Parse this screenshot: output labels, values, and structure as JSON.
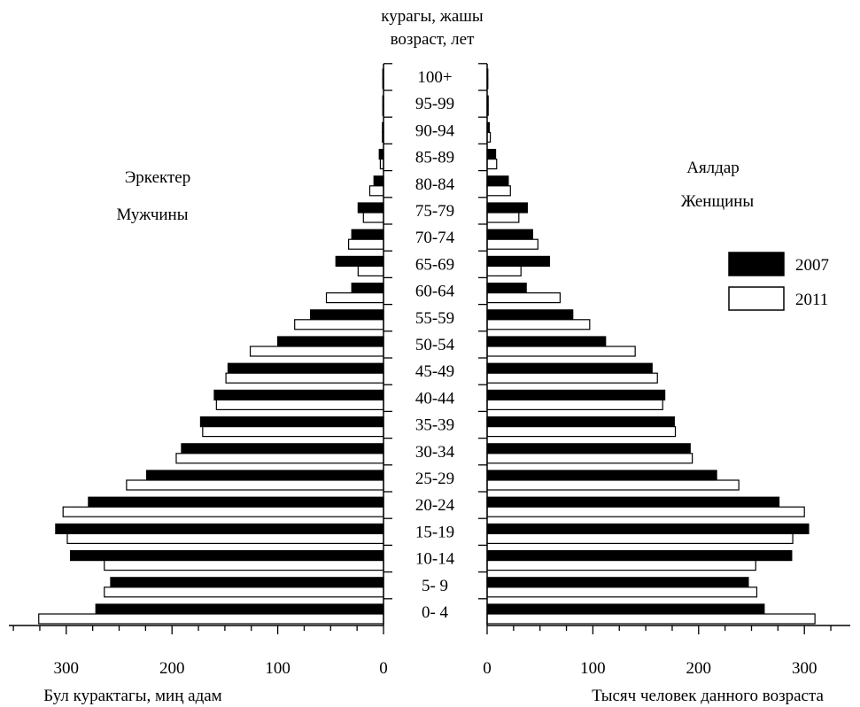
{
  "chart_data": {
    "type": "bar",
    "title_lines": [
      "курагы, жашы",
      "возраст, лет"
    ],
    "left_label_lines": [
      "Эркектер",
      "Мужчины"
    ],
    "right_label_lines": [
      "Аялдар",
      "Женщины"
    ],
    "xlabel_left": "Бул курактагы, миң адам",
    "xlabel_right": "Тысяч человек данного возраста",
    "xlim": [
      0,
      350
    ],
    "ticks": [
      "0",
      "100",
      "200",
      "300"
    ],
    "categories": [
      "0- 4",
      "5- 9",
      "10-14",
      "15-19",
      "20-24",
      "25-29",
      "30-34",
      "35-39",
      "40-44",
      "45-49",
      "50-54",
      "55-59",
      "60-64",
      "65-69",
      "70-74",
      "75-79",
      "80-84",
      "85-89",
      "90-94",
      "95-99",
      "100+"
    ],
    "legend_position": "right",
    "series": [
      {
        "name": "2007",
        "fill": "#000000",
        "male": [
          272,
          258,
          296,
          310,
          279,
          224,
          191,
          173,
          160,
          147,
          100,
          69,
          30,
          45,
          30,
          24,
          9,
          4,
          1,
          0.5,
          0.5
        ],
        "female": [
          262,
          247,
          288,
          304,
          276,
          217,
          192,
          177,
          168,
          156,
          112,
          81,
          37,
          59,
          43,
          38,
          20,
          8,
          2,
          1,
          0.5
        ]
      },
      {
        "name": "2011",
        "fill": "#ffffff",
        "male": [
          326,
          264,
          264,
          299,
          303,
          243,
          196,
          171,
          158,
          149,
          126,
          84,
          54,
          24,
          33,
          19,
          13,
          3,
          1,
          0.5,
          0.5
        ],
        "female": [
          310,
          255,
          254,
          289,
          300,
          238,
          194,
          178,
          166,
          161,
          140,
          97,
          69,
          32,
          48,
          30,
          22,
          9,
          3,
          1,
          0.5
        ]
      }
    ]
  }
}
